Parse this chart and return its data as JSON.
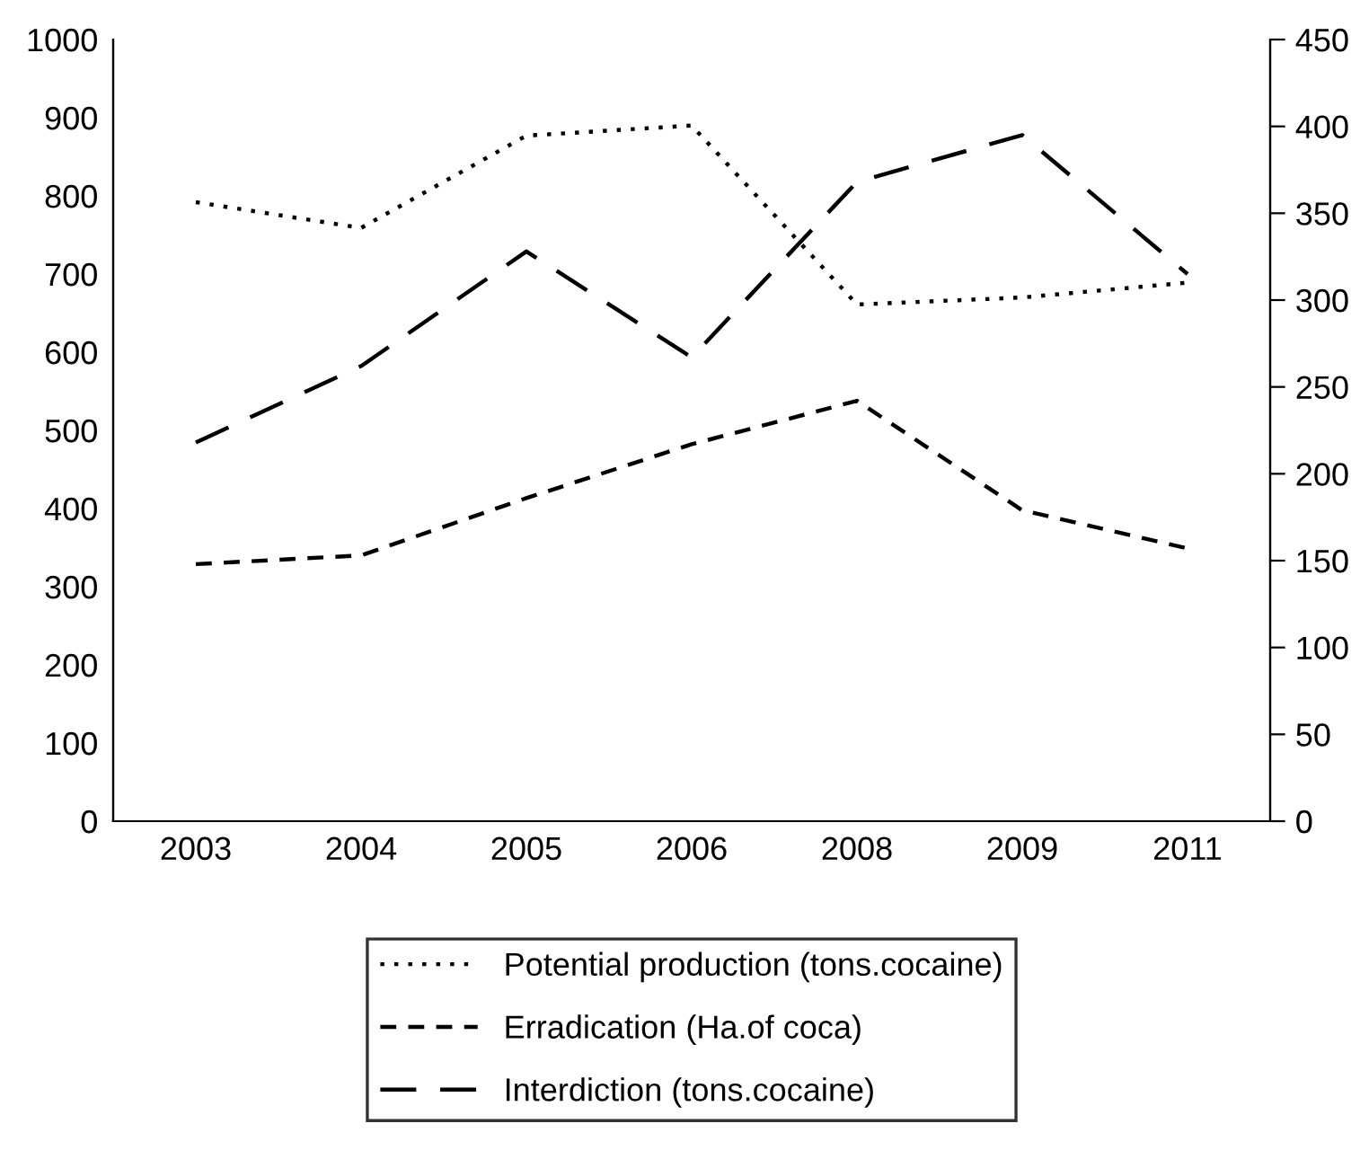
{
  "chart_data": {
    "type": "line",
    "categories": [
      "2003",
      "2004",
      "2005",
      "2006",
      "2008",
      "2009",
      "2011"
    ],
    "series": [
      {
        "name": "Potential production (tons.cocaine)",
        "color": "#000000",
        "line_style": "dotted",
        "values": [
          792,
          759,
          877,
          890,
          661,
          670,
          689
        ]
      },
      {
        "name": "Erradication (Ha.of coca)",
        "color": "#000000",
        "line_style": "dashed",
        "axis": "y2",
        "values": [
          148,
          153,
          186,
          217,
          242,
          179,
          157
        ]
      },
      {
        "name": "Interdiction (tons.cocaine)",
        "color": "#000000",
        "line_style": "longdash",
        "axis": "y2",
        "values": [
          218,
          262,
          328,
          267,
          368,
          395,
          315
        ]
      }
    ],
    "ylim": [
      0,
      1000
    ],
    "yticks": [
      0,
      100,
      200,
      300,
      400,
      500,
      600,
      700,
      800,
      900,
      1000
    ],
    "y2lim": [
      0,
      450
    ],
    "y2ticks": [
      0,
      50,
      100,
      150,
      200,
      250,
      300,
      350,
      400,
      450
    ],
    "grid": false,
    "legend": "bottom"
  }
}
